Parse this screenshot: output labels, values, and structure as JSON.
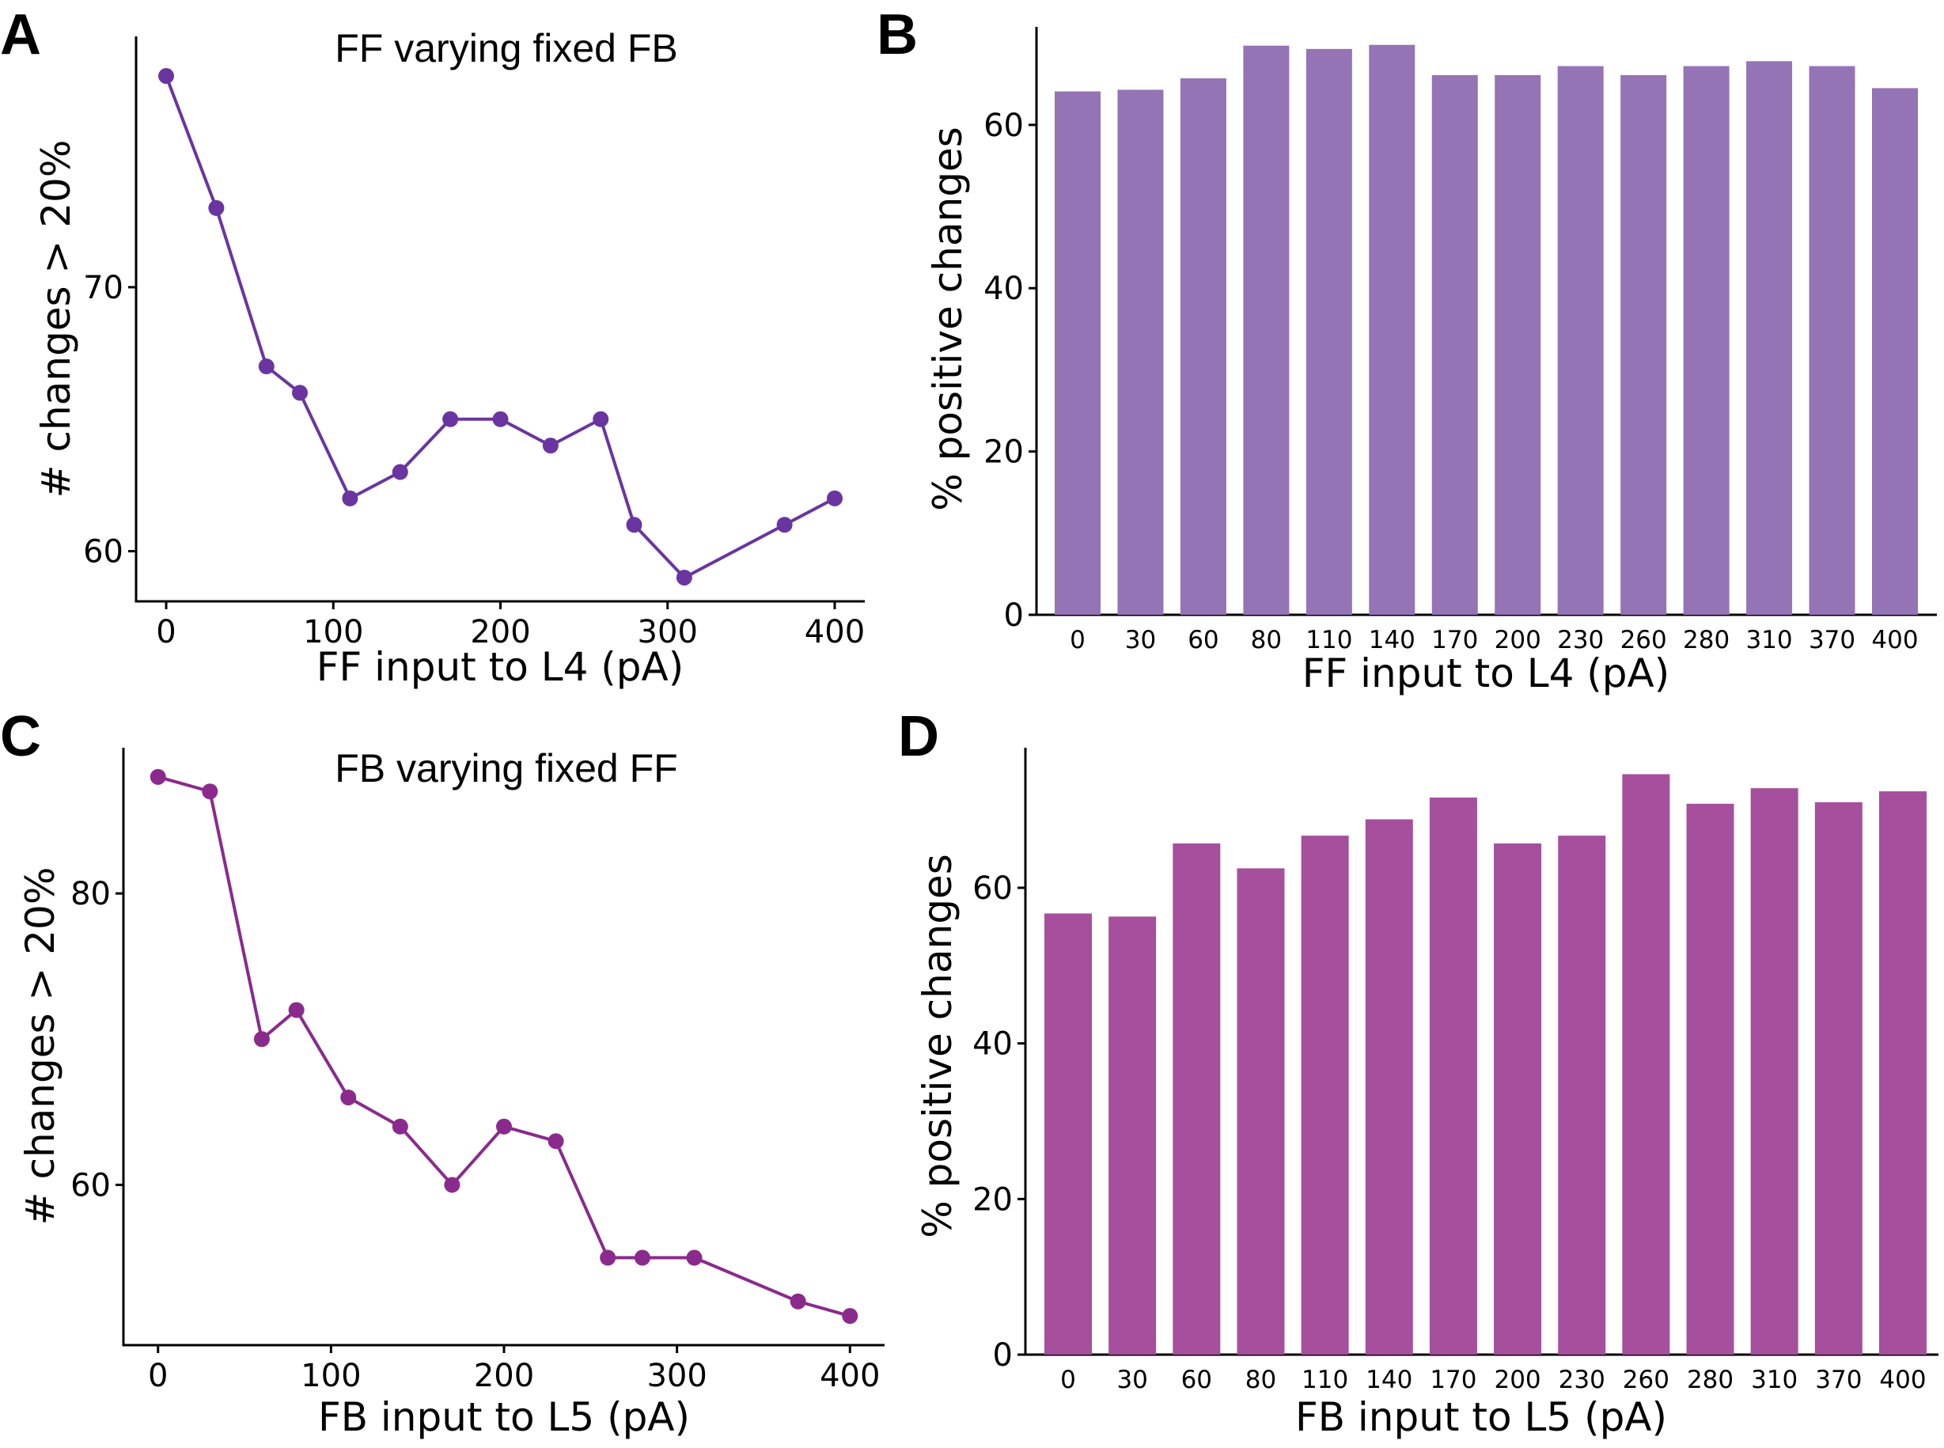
{
  "figure": {
    "panels": [
      "A",
      "B",
      "C",
      "D"
    ]
  },
  "chart_data": [
    {
      "panel": "A",
      "type": "line",
      "title": "FF varying fixed FB",
      "xlabel": "FF input to L4 (pA)",
      "ylabel": "# changes > 20%",
      "x": [
        0,
        30,
        60,
        80,
        110,
        140,
        170,
        200,
        230,
        260,
        280,
        310,
        370,
        400
      ],
      "values": [
        78,
        73,
        67,
        66,
        62,
        63,
        65,
        65,
        64,
        65,
        61,
        59,
        61,
        62
      ],
      "xlim": [
        -18,
        418
      ],
      "ylim": [
        58.1,
        79.5
      ],
      "xticks": [
        0,
        100,
        200,
        300,
        400
      ],
      "yticks": [
        60,
        70
      ],
      "color": "#6a35a0",
      "grid": false
    },
    {
      "panel": "B",
      "type": "bar",
      "xlabel": "FF input to L4 (pA)",
      "ylabel": "% positive changes",
      "categories": [
        "0",
        "30",
        "60",
        "80",
        "110",
        "140",
        "170",
        "200",
        "230",
        "260",
        "280",
        "310",
        "370",
        "400"
      ],
      "values": [
        64.1,
        64.3,
        65.7,
        69.7,
        69.3,
        69.8,
        66.1,
        66.1,
        67.2,
        66.1,
        67.2,
        67.8,
        67.2,
        64.5
      ],
      "ylim": [
        0,
        72
      ],
      "yticks": [
        0,
        20,
        40,
        60
      ],
      "color": "#9474b4",
      "grid": false
    },
    {
      "panel": "C",
      "type": "line",
      "title": "FB varying fixed FF",
      "xlabel": "FB input to L5 (pA)",
      "ylabel": "# changes > 20%",
      "x": [
        0,
        30,
        60,
        80,
        110,
        140,
        170,
        200,
        230,
        260,
        280,
        310,
        370,
        400
      ],
      "values": [
        88,
        87,
        70,
        72,
        66,
        64,
        60,
        64,
        63,
        55,
        55,
        55,
        52,
        51
      ],
      "xlim": [
        -20,
        420
      ],
      "ylim": [
        49,
        90
      ],
      "xticks": [
        0,
        100,
        200,
        300,
        400
      ],
      "yticks": [
        60,
        80
      ],
      "color": "#8a2a8c",
      "grid": false
    },
    {
      "panel": "D",
      "type": "bar",
      "xlabel": "FB input to L5 (pA)",
      "ylabel": "% positive changes",
      "categories": [
        "0",
        "30",
        "60",
        "80",
        "110",
        "140",
        "170",
        "200",
        "230",
        "260",
        "280",
        "310",
        "370",
        "400"
      ],
      "values": [
        56.7,
        56.3,
        65.7,
        62.5,
        66.7,
        68.8,
        71.6,
        65.7,
        66.7,
        74.6,
        70.8,
        72.8,
        71.0,
        72.4
      ],
      "ylim": [
        0,
        78
      ],
      "yticks": [
        0,
        20,
        40,
        60
      ],
      "color": "#a64f9d",
      "grid": false
    }
  ]
}
